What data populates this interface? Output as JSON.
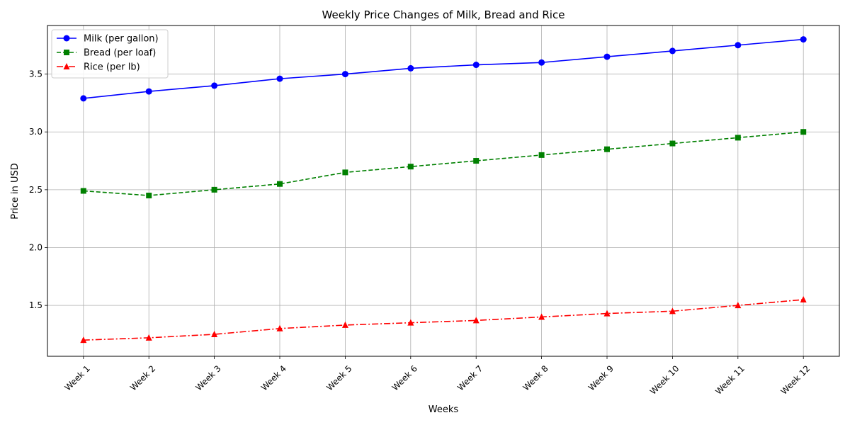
{
  "chart_data": {
    "type": "line",
    "title": "Weekly Price Changes of Milk, Bread and Rice",
    "xlabel": "Weeks",
    "ylabel": "Price in USD",
    "categories": [
      "Week 1",
      "Week 2",
      "Week 3",
      "Week 4",
      "Week 5",
      "Week 6",
      "Week 7",
      "Week 8",
      "Week 9",
      "Week 10",
      "Week 11",
      "Week 12"
    ],
    "ylim": [
      1.06,
      3.92
    ],
    "yticks": [
      "1.5",
      "2.0",
      "2.5",
      "3.0",
      "3.5"
    ],
    "grid": true,
    "legend_position": "top-left",
    "series": [
      {
        "name": "Milk (per gallon)",
        "color": "#0000ff",
        "marker": "circle",
        "linestyle": "solid",
        "values": [
          3.29,
          3.35,
          3.4,
          3.46,
          3.5,
          3.55,
          3.58,
          3.6,
          3.65,
          3.7,
          3.75,
          3.8
        ]
      },
      {
        "name": "Bread (per loaf)",
        "color": "#008000",
        "marker": "square",
        "linestyle": "dashed",
        "values": [
          2.49,
          2.45,
          2.5,
          2.55,
          2.65,
          2.7,
          2.75,
          2.8,
          2.85,
          2.9,
          2.95,
          3.0
        ]
      },
      {
        "name": "Rice (per lb)",
        "color": "#ff0000",
        "marker": "triangle",
        "linestyle": "dashdot",
        "values": [
          1.2,
          1.22,
          1.25,
          1.3,
          1.33,
          1.35,
          1.37,
          1.4,
          1.43,
          1.45,
          1.5,
          1.55
        ]
      }
    ]
  }
}
